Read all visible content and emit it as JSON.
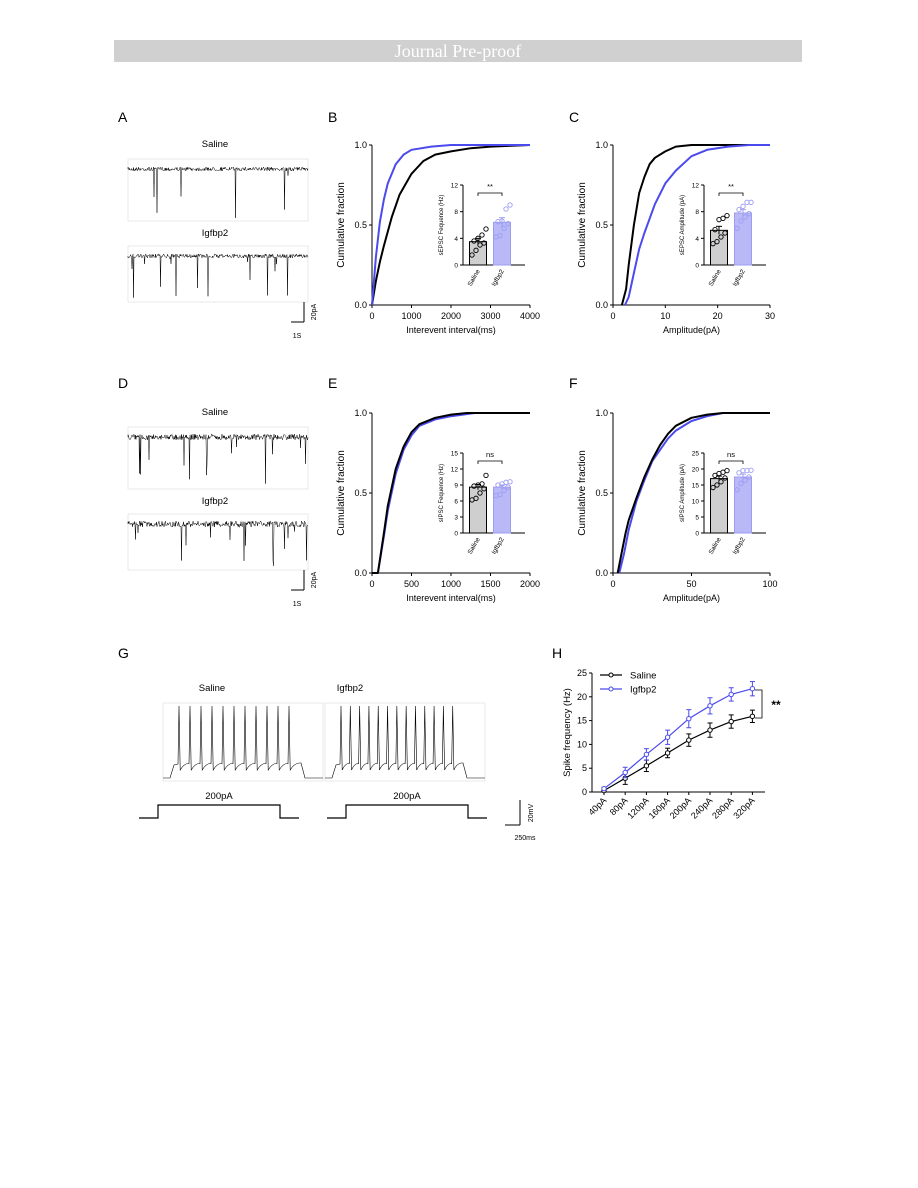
{
  "header": {
    "title": "Journal Pre-proof"
  },
  "panel_labels": [
    "A",
    "B",
    "C",
    "D",
    "E",
    "F",
    "G",
    "H"
  ],
  "traces": {
    "A": {
      "groups": [
        "Saline",
        "Igfbp2"
      ],
      "scale_y": "20pA",
      "scale_x": "1S"
    },
    "D": {
      "groups": [
        "Saline",
        "Igfbp2"
      ],
      "scale_y": "20pA",
      "scale_x": "1S"
    },
    "G": {
      "groups": [
        "Saline",
        "Igfbp2"
      ],
      "stimulus": "200pA",
      "scale_y": "20mV",
      "scale_x": "250ms"
    }
  },
  "colors": {
    "saline": "#000000",
    "igfbp2": "#4a4aee",
    "igfbp2_bar": "#b9b9f7",
    "saline_bar": "#cfcfcf"
  },
  "chart_data": [
    {
      "panel": "B",
      "type": "line",
      "xlabel": "Interevent interval(ms)",
      "ylabel": "Cumulative fraction",
      "xlim": [
        0,
        4000
      ],
      "ylim": [
        0,
        1
      ],
      "xticks": [
        "0",
        "1000",
        "2000",
        "3000",
        "4000"
      ],
      "yticks": [
        "0.0",
        "0.5",
        "1.0"
      ],
      "series": [
        {
          "color": "#000000",
          "points": [
            [
              0,
              0
            ],
            [
              100,
              0.15
            ],
            [
              200,
              0.27
            ],
            [
              300,
              0.37
            ],
            [
              500,
              0.55
            ],
            [
              700,
              0.69
            ],
            [
              1000,
              0.82
            ],
            [
              1300,
              0.9
            ],
            [
              1600,
              0.94
            ],
            [
              2000,
              0.96
            ],
            [
              2500,
              0.98
            ],
            [
              3000,
              0.99
            ],
            [
              4000,
              1
            ]
          ]
        },
        {
          "color": "#4a4aee",
          "points": [
            [
              0,
              0
            ],
            [
              100,
              0.3
            ],
            [
              200,
              0.52
            ],
            [
              300,
              0.66
            ],
            [
              400,
              0.76
            ],
            [
              600,
              0.88
            ],
            [
              800,
              0.94
            ],
            [
              1000,
              0.97
            ],
            [
              1500,
              0.99
            ],
            [
              2000,
              1
            ],
            [
              4000,
              1
            ]
          ]
        }
      ],
      "inset": {
        "type": "bar",
        "ylabel": "sEPSC Fequence (Hz)",
        "ylim": [
          0,
          12
        ],
        "yticks": [
          "0",
          "4",
          "8",
          "12"
        ],
        "categories": [
          "Saline",
          "Igfbp2"
        ],
        "values": [
          3.5,
          6.4
        ],
        "sem": [
          0.5,
          0.7
        ],
        "points": [
          [
            1.5,
            2.2,
            3.0,
            3.3,
            3.6,
            4.0,
            4.5,
            5.4
          ],
          [
            4.2,
            4.4,
            5.5,
            6.2,
            6.5,
            6.6,
            8.4,
            9.0
          ]
        ],
        "significance": "**"
      }
    },
    {
      "panel": "C",
      "type": "line",
      "xlabel": "Amplitude(pA)",
      "ylabel": "Cumulative fraction",
      "xlim": [
        0,
        30
      ],
      "ylim": [
        0,
        1
      ],
      "xticks": [
        "0",
        "10",
        "20",
        "30"
      ],
      "yticks": [
        "0.0",
        "0.5",
        "1.0"
      ],
      "series": [
        {
          "color": "#000000",
          "points": [
            [
              1.7,
              0
            ],
            [
              2.5,
              0.1
            ],
            [
              3,
              0.25
            ],
            [
              4,
              0.5
            ],
            [
              5,
              0.7
            ],
            [
              6,
              0.8
            ],
            [
              7,
              0.88
            ],
            [
              8,
              0.92
            ],
            [
              10,
              0.96
            ],
            [
              12,
              0.99
            ],
            [
              15,
              1
            ],
            [
              30,
              1
            ]
          ]
        },
        {
          "color": "#4a4aee",
          "points": [
            [
              2.3,
              0
            ],
            [
              3,
              0.05
            ],
            [
              4,
              0.2
            ],
            [
              5,
              0.35
            ],
            [
              6,
              0.45
            ],
            [
              8,
              0.63
            ],
            [
              10,
              0.76
            ],
            [
              12,
              0.84
            ],
            [
              15,
              0.93
            ],
            [
              18,
              0.97
            ],
            [
              22,
              0.99
            ],
            [
              26,
              1
            ],
            [
              30,
              1
            ]
          ]
        }
      ],
      "inset": {
        "type": "bar",
        "ylabel": "sEPSC Amplitude (pA)",
        "ylim": [
          0,
          12
        ],
        "yticks": [
          "0",
          "4",
          "8",
          "12"
        ],
        "categories": [
          "Saline",
          "Igfbp2"
        ],
        "values": [
          5.2,
          7.8
        ],
        "sem": [
          0.6,
          0.5
        ],
        "points": [
          [
            3.2,
            3.5,
            4.2,
            4.8,
            5.3,
            6.8,
            7.0,
            7.4
          ],
          [
            5.5,
            6.6,
            7.2,
            7.7,
            8.3,
            8.8,
            9.4,
            9.4
          ]
        ],
        "significance": "**"
      }
    },
    {
      "panel": "E",
      "type": "line",
      "xlabel": "Interevent interval(ms)",
      "ylabel": "Cumulative fraction",
      "xlim": [
        0,
        2000
      ],
      "ylim": [
        0,
        1
      ],
      "xticks": [
        "0",
        "500",
        "1000",
        "1500",
        "2000"
      ],
      "yticks": [
        "0.0",
        "0.5",
        "1.0"
      ],
      "series": [
        {
          "color": "#4a4aee",
          "points": [
            [
              0,
              0
            ],
            [
              75,
              0
            ],
            [
              150,
              0.23
            ],
            [
              200,
              0.39
            ],
            [
              300,
              0.62
            ],
            [
              400,
              0.77
            ],
            [
              500,
              0.86
            ],
            [
              600,
              0.92
            ],
            [
              800,
              0.96
            ],
            [
              1000,
              0.98
            ],
            [
              1300,
              1
            ],
            [
              2000,
              1
            ]
          ]
        },
        {
          "color": "#000000",
          "points": [
            [
              0,
              0
            ],
            [
              75,
              0
            ],
            [
              150,
              0.25
            ],
            [
              200,
              0.42
            ],
            [
              300,
              0.65
            ],
            [
              400,
              0.79
            ],
            [
              500,
              0.88
            ],
            [
              600,
              0.93
            ],
            [
              800,
              0.97
            ],
            [
              1000,
              0.99
            ],
            [
              1200,
              1
            ],
            [
              2000,
              1
            ]
          ]
        }
      ],
      "inset": {
        "type": "bar",
        "ylabel": "sIPSC Fequence (Hz)",
        "ylim": [
          0,
          15
        ],
        "yticks": [
          "0",
          "3",
          "6",
          "9",
          "12",
          "15"
        ],
        "categories": [
          "Saline",
          "Igfbp2"
        ],
        "values": [
          8.6,
          8.6
        ],
        "sem": [
          0.5,
          0.4
        ],
        "points": [
          [
            6.2,
            6.5,
            7.5,
            8.3,
            8.8,
            9.0,
            9.2,
            10.8
          ],
          [
            7.0,
            7.2,
            8.0,
            8.6,
            9.0,
            9.2,
            9.5,
            9.6
          ]
        ],
        "significance": "ns"
      }
    },
    {
      "panel": "F",
      "type": "line",
      "xlabel": "Amplitude(pA)",
      "ylabel": "Cumulative fraction",
      "xlim": [
        0,
        100
      ],
      "ylim": [
        0,
        1
      ],
      "xticks": [
        "0",
        "50",
        "100"
      ],
      "yticks": [
        "0.0",
        "0.5",
        "1.0"
      ],
      "series": [
        {
          "color": "#4a4aee",
          "points": [
            [
              4,
              0
            ],
            [
              7,
              0.12
            ],
            [
              10,
              0.27
            ],
            [
              15,
              0.45
            ],
            [
              20,
              0.58
            ],
            [
              25,
              0.7
            ],
            [
              30,
              0.77
            ],
            [
              35,
              0.84
            ],
            [
              40,
              0.89
            ],
            [
              50,
              0.95
            ],
            [
              60,
              0.98
            ],
            [
              70,
              1
            ],
            [
              100,
              1
            ]
          ]
        },
        {
          "color": "#000000",
          "points": [
            [
              3,
              0
            ],
            [
              6,
              0.15
            ],
            [
              8,
              0.25
            ],
            [
              10,
              0.33
            ],
            [
              15,
              0.47
            ],
            [
              20,
              0.6
            ],
            [
              25,
              0.71
            ],
            [
              30,
              0.8
            ],
            [
              35,
              0.87
            ],
            [
              40,
              0.92
            ],
            [
              50,
              0.97
            ],
            [
              60,
              0.99
            ],
            [
              70,
              1
            ],
            [
              100,
              1
            ]
          ]
        }
      ],
      "inset": {
        "type": "bar",
        "ylabel": "sIPSC Amplitude (pA)",
        "ylim": [
          0,
          25
        ],
        "yticks": [
          "0",
          "5",
          "10",
          "15",
          "20",
          "25"
        ],
        "categories": [
          "Saline",
          "Igfbp2"
        ],
        "values": [
          17.0,
          17.5
        ],
        "sem": [
          0.8,
          0.9
        ],
        "points": [
          [
            14.2,
            15.0,
            16.0,
            17.2,
            18.0,
            18.6,
            19.0,
            19.5
          ],
          [
            13.5,
            15.5,
            16.5,
            17.5,
            18.8,
            19.5,
            19.5,
            19.6
          ]
        ],
        "significance": "ns"
      }
    },
    {
      "panel": "H",
      "type": "line",
      "ylabel": "Spike frequency (Hz)",
      "ylim": [
        0,
        25
      ],
      "yticks": [
        "0",
        "5",
        "10",
        "15",
        "20",
        "25"
      ],
      "categories": [
        "40pA",
        "80pA",
        "120pA",
        "160pA",
        "200pA",
        "240pA",
        "280pA",
        "320pA"
      ],
      "legend": "top-left",
      "significance": "**",
      "series": [
        {
          "name": "Saline",
          "color": "#000000",
          "values": [
            0.3,
            2.9,
            5.5,
            8.2,
            10.9,
            13.0,
            14.8,
            15.9
          ],
          "sem": [
            0.3,
            1.3,
            1.2,
            1.0,
            1.3,
            1.5,
            1.4,
            1.3
          ]
        },
        {
          "name": "Igfbp2",
          "color": "#4a4aee",
          "values": [
            0.7,
            4.1,
            7.9,
            11.5,
            15.4,
            18.1,
            20.5,
            21.7
          ],
          "sem": [
            0.3,
            1.1,
            1.2,
            1.5,
            1.9,
            1.7,
            1.4,
            1.5
          ]
        }
      ]
    }
  ]
}
